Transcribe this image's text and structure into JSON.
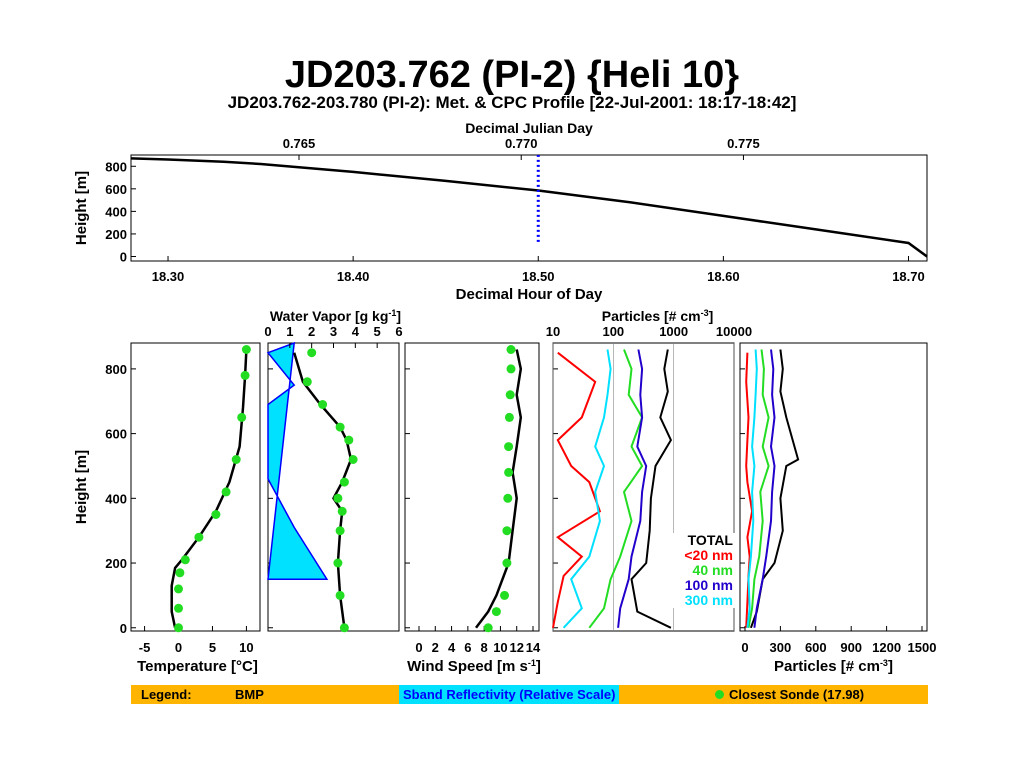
{
  "title": "JD203.762 (PI-2) {Heli 10}",
  "subtitle": "JD203.762-203.780 (PI-2): Met. & CPC Profile [22-Jul-2001: 18:17-18:42]",
  "colors": {
    "legend_bar": "#ffb400",
    "reflectivity_fill": "#00e0ff",
    "reflectivity_text": "#0000ff",
    "sonde": "#22dd22",
    "bmp": "#000000",
    "profile_marker": "#0000ff",
    "p20": "#ff0000",
    "p40": "#22dd22",
    "p100": "#2200cc",
    "p300": "#00e0ff"
  },
  "legend": {
    "label": "Legend:",
    "bmp": "BMP",
    "reflectivity": "Sband Reflectivity (Relative Scale)",
    "sonde": "Closest Sonde (17.98)"
  },
  "chart_data": [
    {
      "type": "line",
      "name": "height-time",
      "top_axis_label": "Decimal Julian Day",
      "top_ticks": [
        "0.765",
        "0.770",
        "0.775"
      ],
      "top_tick_values": [
        0.765,
        0.77,
        0.775
      ],
      "xlabel": "Decimal Hour of Day",
      "xticks": [
        "18.30",
        "18.40",
        "18.50",
        "18.60",
        "18.70"
      ],
      "xlim": [
        18.28,
        18.71
      ],
      "ylabel": "Height [m]",
      "yticks": [
        0,
        200,
        400,
        600,
        800
      ],
      "ylim": [
        -40,
        900
      ],
      "x": [
        18.28,
        18.3,
        18.33,
        18.35,
        18.4,
        18.45,
        18.5,
        18.55,
        18.6,
        18.65,
        18.7,
        18.71
      ],
      "y": [
        870,
        860,
        840,
        820,
        750,
        670,
        585,
        480,
        360,
        240,
        120,
        0
      ],
      "marker_x": 18.5,
      "marker_ylim": [
        130,
        900
      ]
    },
    {
      "type": "line",
      "name": "temperature",
      "xlabel": "Temperature [°C]",
      "xticks": [
        -5,
        0,
        5,
        10
      ],
      "xlim": [
        -7,
        12
      ],
      "ylabel": "Height [m]",
      "yticks": [
        0,
        200,
        400,
        600,
        800
      ],
      "ylim": [
        -10,
        880
      ],
      "series": [
        {
          "name": "BMP",
          "x": [
            -0.5,
            -1.0,
            -1.0,
            -0.5,
            0.5,
            3.0,
            5.5,
            7.5,
            9.0,
            9.5,
            9.8,
            10.0
          ],
          "y": [
            0,
            50,
            130,
            185,
            210,
            280,
            360,
            450,
            560,
            680,
            780,
            860
          ]
        },
        {
          "name": "Closest Sonde",
          "x": [
            0.0,
            0.0,
            0.0,
            0.2,
            1.0,
            3.0,
            5.5,
            7.0,
            8.5,
            9.3,
            9.8,
            10.0
          ],
          "y": [
            0,
            60,
            120,
            170,
            210,
            280,
            350,
            420,
            520,
            650,
            780,
            860
          ]
        }
      ]
    },
    {
      "type": "area",
      "name": "water-vapor",
      "top_axis_label": "Water Vapor [g kg-1]",
      "top_ticks": [
        0,
        1,
        2,
        3,
        4,
        5,
        6
      ],
      "xlim": [
        0,
        6
      ],
      "ylim": [
        -10,
        880
      ],
      "series": [
        {
          "name": "BMP",
          "x": [
            3.5,
            3.3,
            3.2,
            3.3,
            3.4,
            3.0,
            3.4,
            3.8,
            3.6,
            3.3,
            2.4,
            1.6,
            1.2
          ],
          "y": [
            0,
            100,
            200,
            300,
            360,
            400,
            450,
            520,
            580,
            620,
            690,
            760,
            850
          ]
        },
        {
          "name": "Closest Sonde",
          "x": [
            3.5,
            3.3,
            3.2,
            3.3,
            3.4,
            3.2,
            3.5,
            3.9,
            3.7,
            3.3,
            2.5,
            1.8,
            2.0
          ],
          "y": [
            0,
            100,
            200,
            300,
            360,
            400,
            450,
            520,
            580,
            620,
            690,
            760,
            850
          ]
        },
        {
          "name": "Sband Reflectivity (Relative Scale)",
          "x": [
            0,
            2.7,
            1.2,
            0,
            0,
            1.2,
            0,
            0,
            1.2,
            1.2
          ],
          "y": [
            150,
            150,
            310,
            460,
            690,
            750,
            850,
            850,
            880,
            880
          ]
        }
      ]
    },
    {
      "type": "line",
      "name": "wind-speed",
      "xlabel": "Wind Speed [m s-1]",
      "xticks": [
        0,
        2,
        4,
        6,
        8,
        10,
        12,
        14
      ],
      "xlim": [
        0,
        14
      ],
      "ylim": [
        -10,
        880
      ],
      "series": [
        {
          "name": "BMP",
          "x": [
            7.0,
            8.5,
            9.5,
            11.0,
            11.5,
            12.0,
            11.5,
            12.0,
            12.5,
            12.0,
            12.5,
            12.0
          ],
          "y": [
            0,
            50,
            100,
            200,
            300,
            400,
            480,
            560,
            650,
            720,
            800,
            860
          ]
        },
        {
          "name": "Closest Sonde",
          "x": [
            8.5,
            9.5,
            10.5,
            10.8,
            10.8,
            10.9,
            11.0,
            11.0,
            11.1,
            11.2,
            11.3,
            11.3
          ],
          "y": [
            0,
            50,
            100,
            200,
            300,
            400,
            480,
            560,
            650,
            720,
            800,
            860
          ]
        }
      ]
    },
    {
      "type": "line",
      "name": "particles-log",
      "top_axis_label": "Particles [# cm-3]",
      "top_ticks": [
        "10",
        "100",
        "1000",
        "10000"
      ],
      "top_tick_values": [
        10,
        100,
        1000,
        10000
      ],
      "xlim": [
        10,
        10000
      ],
      "xscale": "log",
      "ylim": [
        -10,
        880
      ],
      "series": [
        {
          "name": "TOTAL",
          "x": [
            900,
            250,
            200,
            350,
            400,
            420,
            500,
            900,
            600,
            800,
            700,
            800
          ],
          "y": [
            0,
            50,
            150,
            200,
            300,
            400,
            500,
            580,
            650,
            730,
            800,
            860
          ]
        },
        {
          "name": "<20 nm",
          "x": [
            10,
            12,
            15,
            30,
            12,
            60,
            40,
            20,
            12,
            30,
            50,
            12
          ],
          "y": [
            0,
            80,
            160,
            220,
            280,
            360,
            450,
            500,
            580,
            650,
            760,
            850
          ]
        },
        {
          "name": "40 nm",
          "x": [
            40,
            70,
            90,
            130,
            200,
            150,
            300,
            200,
            300,
            180,
            200,
            150
          ],
          "y": [
            0,
            60,
            150,
            220,
            330,
            420,
            500,
            560,
            650,
            720,
            800,
            860
          ]
        },
        {
          "name": "100 nm",
          "x": [
            120,
            130,
            180,
            200,
            280,
            300,
            350,
            250,
            300,
            280,
            300,
            260
          ],
          "y": [
            0,
            60,
            150,
            220,
            330,
            420,
            500,
            560,
            650,
            720,
            800,
            860
          ]
        },
        {
          "name": "300 nm",
          "x": [
            15,
            30,
            20,
            40,
            60,
            50,
            70,
            50,
            70,
            80,
            90,
            80
          ],
          "y": [
            0,
            60,
            150,
            220,
            330,
            420,
            500,
            560,
            650,
            720,
            800,
            860
          ]
        }
      ],
      "labels": [
        "TOTAL",
        "<20 nm",
        "40 nm",
        "100 nm",
        "300 nm"
      ]
    },
    {
      "type": "line",
      "name": "particles-linear",
      "xlabel": "Particles [# cm-3]",
      "xticks": [
        0,
        300,
        600,
        900,
        1200,
        1500
      ],
      "xlim": [
        0,
        1500
      ],
      "ylim": [
        -10,
        880
      ],
      "series": [
        {
          "name": "TOTAL",
          "x": [
            50,
            100,
            150,
            250,
            320,
            300,
            350,
            450,
            350,
            300,
            320,
            300
          ],
          "y": [
            0,
            50,
            150,
            200,
            300,
            400,
            500,
            520,
            650,
            730,
            800,
            860
          ]
        },
        {
          "name": "<20 nm",
          "x": [
            10,
            20,
            30,
            40,
            20,
            60,
            20,
            10,
            20,
            30,
            10,
            20
          ],
          "y": [
            0,
            80,
            160,
            220,
            280,
            360,
            450,
            500,
            580,
            650,
            760,
            850
          ]
        },
        {
          "name": "40 nm",
          "x": [
            30,
            60,
            80,
            120,
            150,
            130,
            200,
            150,
            200,
            150,
            160,
            140
          ],
          "y": [
            0,
            60,
            150,
            220,
            330,
            420,
            500,
            560,
            650,
            720,
            800,
            860
          ]
        },
        {
          "name": "100 nm",
          "x": [
            80,
            100,
            150,
            180,
            220,
            230,
            250,
            220,
            250,
            230,
            240,
            220
          ],
          "y": [
            0,
            60,
            150,
            220,
            330,
            420,
            500,
            560,
            650,
            720,
            800,
            860
          ]
        },
        {
          "name": "300 nm",
          "x": [
            20,
            40,
            30,
            50,
            70,
            60,
            80,
            60,
            80,
            90,
            100,
            90
          ],
          "y": [
            0,
            60,
            150,
            220,
            330,
            420,
            500,
            560,
            650,
            720,
            800,
            860
          ]
        }
      ]
    }
  ]
}
